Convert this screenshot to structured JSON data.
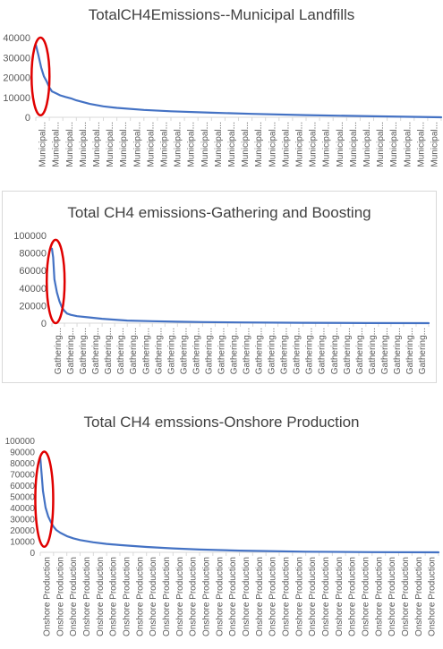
{
  "charts": [
    {
      "id": "c1",
      "chart_data": {
        "type": "line",
        "title": "TotalCH4Emissions--Municipal Landfills",
        "category_label": "Municipal Landfills",
        "displayed_category_text": "Municipal...",
        "num_visible_category_labels": 30,
        "ylim": [
          0,
          40000
        ],
        "yticks": [
          0,
          10000,
          20000,
          30000,
          40000
        ],
        "x": [
          0,
          0.2,
          0.4,
          0.6,
          0.8,
          1,
          1.2,
          1.5,
          1.8,
          2.2,
          2.6,
          3,
          4,
          5,
          6,
          8,
          10,
          13,
          16,
          20,
          25,
          30
        ],
        "y": [
          36500,
          31000,
          25000,
          20500,
          18000,
          15000,
          13000,
          12000,
          11000,
          10200,
          9500,
          8500,
          6700,
          5500,
          4700,
          3700,
          3000,
          2300,
          1700,
          1100,
          500,
          0
        ],
        "x_range": [
          0,
          30
        ],
        "series_color": "#4472c4",
        "grid": false,
        "legend": "none",
        "highlight": {
          "shape": "ellipse",
          "color": "#e00000",
          "x_center": 0.35,
          "y_range": [
            1000,
            40000
          ]
        }
      }
    },
    {
      "id": "c2",
      "chart_data": {
        "type": "line",
        "title": "Total CH4 emissions-Gathering and Boosting",
        "category_label": "Gathering and Boosting",
        "displayed_category_text": "Gathering...",
        "num_visible_category_labels": 30,
        "ylim": [
          0,
          100000
        ],
        "yticks": [
          0,
          20000,
          40000,
          60000,
          80000,
          100000
        ],
        "x": [
          0,
          0.1,
          0.2,
          0.4,
          0.6,
          0.8,
          1,
          1.2,
          1.5,
          2,
          3,
          4,
          5,
          6,
          8,
          10,
          12,
          15,
          20,
          25,
          30
        ],
        "y": [
          85000,
          75000,
          50000,
          35000,
          25000,
          18000,
          14000,
          11000,
          9500,
          8000,
          6500,
          5000,
          4000,
          3000,
          2200,
          1600,
          1200,
          800,
          400,
          150,
          0
        ],
        "x_range": [
          0,
          30
        ],
        "series_color": "#4472c4",
        "grid": false,
        "legend": "none",
        "highlight": {
          "shape": "ellipse",
          "color": "#e00000",
          "x_center": 0.3,
          "y_range": [
            0,
            95000
          ]
        }
      }
    },
    {
      "id": "c3",
      "chart_data": {
        "type": "line",
        "title": "Total CH4 emssions-Onshore Production",
        "category_label": "Onshore Production",
        "displayed_category_text": "Onshore Production",
        "num_visible_category_labels": 30,
        "ylim": [
          0,
          100000
        ],
        "yticks": [
          0,
          10000,
          20000,
          30000,
          40000,
          50000,
          60000,
          70000,
          80000,
          90000,
          100000
        ],
        "x": [
          0,
          0.1,
          0.2,
          0.4,
          0.6,
          0.8,
          1,
          1.2,
          1.5,
          2,
          2.5,
          3,
          4,
          5,
          6,
          8,
          10,
          12,
          15,
          20,
          25,
          30
        ],
        "y": [
          85000,
          70000,
          55000,
          40000,
          32000,
          27000,
          23000,
          20000,
          17500,
          14500,
          12500,
          11000,
          9000,
          7500,
          6500,
          4800,
          3500,
          2500,
          1500,
          600,
          200,
          0
        ],
        "x_range": [
          0,
          30
        ],
        "series_color": "#4472c4",
        "grid": false,
        "legend": "none",
        "highlight": {
          "shape": "ellipse",
          "color": "#e00000",
          "x_center": 0.3,
          "y_range": [
            5000,
            90000
          ]
        }
      }
    }
  ]
}
